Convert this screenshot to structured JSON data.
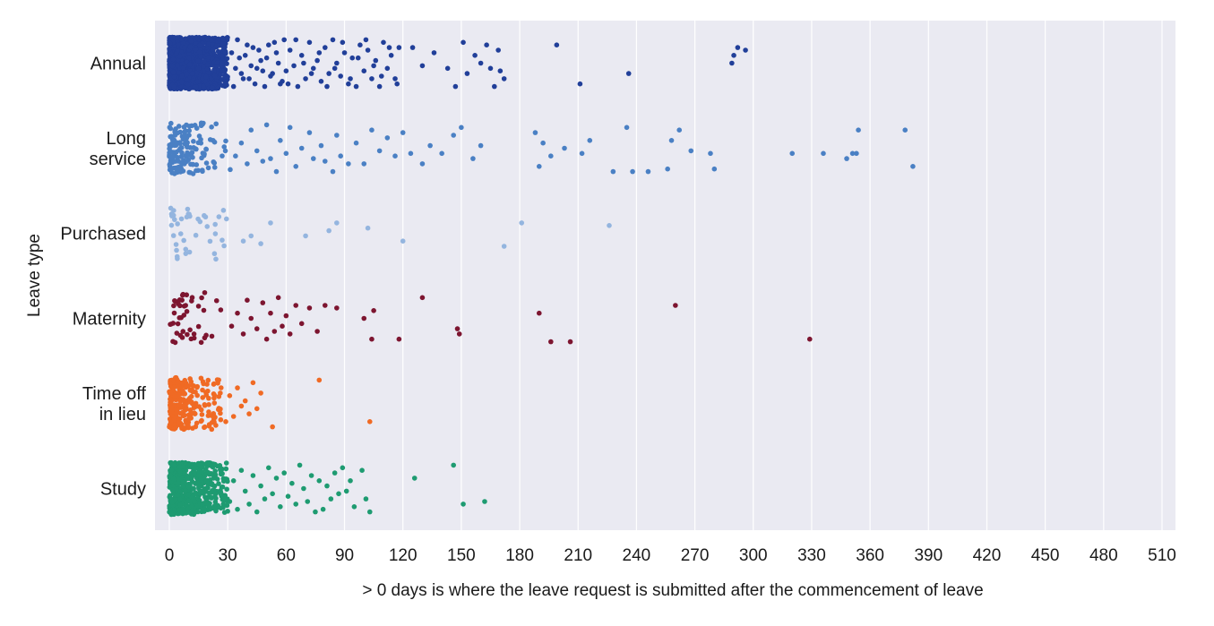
{
  "chart_data": {
    "type": "scatter",
    "subtype": "strip",
    "title": "",
    "xlabel": "> 0 days is where the leave request is submitted after the commencement of leave",
    "ylabel": "Leave type",
    "xlim": [
      -5,
      510
    ],
    "xticks": [
      0,
      30,
      60,
      90,
      120,
      150,
      180,
      210,
      240,
      270,
      300,
      330,
      360,
      390,
      420,
      450,
      480,
      510
    ],
    "grid": true,
    "background": "#eaeaf2",
    "categories": [
      {
        "label": [
          "Annual"
        ],
        "color": "#213f99"
      },
      {
        "label": [
          "Long",
          "service"
        ],
        "color": "#4a80c4"
      },
      {
        "label": [
          "Purchased"
        ],
        "color": "#94b5df"
      },
      {
        "label": [
          "Maternity"
        ],
        "color": "#7d1530"
      },
      {
        "label": [
          "Time off",
          "in lieu"
        ],
        "color": "#f06a24"
      },
      {
        "label": [
          "Study"
        ],
        "color": "#1e9b71"
      }
    ],
    "series": [
      {
        "name": "Annual",
        "dense": {
          "count": 1300,
          "max": 30,
          "decay": 14
        },
        "points": [
          [
            32,
            -0.4
          ],
          [
            34,
            0.2
          ],
          [
            36,
            -0.2
          ],
          [
            38,
            0.6
          ],
          [
            40,
            -0.7
          ],
          [
            42,
            0.1
          ],
          [
            44,
            0.8
          ],
          [
            46,
            -0.5
          ],
          [
            48,
            0.3
          ],
          [
            50,
            -0.2
          ],
          [
            52,
            0.5
          ],
          [
            54,
            -0.8
          ],
          [
            56,
            0.0
          ],
          [
            58,
            0.7
          ],
          [
            33,
            0.9
          ],
          [
            35,
            -0.9
          ],
          [
            37,
            0.4
          ],
          [
            39,
            -0.3
          ],
          [
            41,
            0.6
          ],
          [
            43,
            -0.6
          ],
          [
            45,
            0.2
          ],
          [
            47,
            -0.1
          ],
          [
            49,
            0.9
          ],
          [
            51,
            -0.7
          ],
          [
            53,
            0.4
          ],
          [
            55,
            -0.4
          ],
          [
            57,
            0.8
          ],
          [
            59,
            -0.9
          ],
          [
            60,
            0.3
          ],
          [
            62,
            -0.5
          ],
          [
            64,
            0.1
          ],
          [
            66,
            0.9
          ],
          [
            68,
            -0.3
          ],
          [
            70,
            0.6
          ],
          [
            72,
            -0.8
          ],
          [
            74,
            0.2
          ],
          [
            76,
            -0.1
          ],
          [
            78,
            0.7
          ],
          [
            80,
            -0.6
          ],
          [
            82,
            0.4
          ],
          [
            84,
            -0.9
          ],
          [
            86,
            0.0
          ],
          [
            88,
            0.5
          ],
          [
            90,
            -0.4
          ],
          [
            92,
            0.8
          ],
          [
            94,
            -0.2
          ],
          [
            96,
            0.9
          ],
          [
            98,
            -0.7
          ],
          [
            100,
            0.3
          ],
          [
            102,
            -0.5
          ],
          [
            104,
            0.6
          ],
          [
            106,
            -0.1
          ],
          [
            108,
            0.9
          ],
          [
            110,
            -0.8
          ],
          [
            112,
            0.2
          ],
          [
            114,
            -0.3
          ],
          [
            116,
            0.6
          ],
          [
            118,
            -0.6
          ],
          [
            61,
            0.8
          ],
          [
            65,
            -0.9
          ],
          [
            69,
            0.0
          ],
          [
            73,
            0.4
          ],
          [
            77,
            -0.4
          ],
          [
            81,
            0.9
          ],
          [
            85,
            0.2
          ],
          [
            89,
            -0.8
          ],
          [
            93,
            0.6
          ],
          [
            97,
            -0.2
          ],
          [
            101,
            -0.9
          ],
          [
            105,
            0.1
          ],
          [
            109,
            0.5
          ],
          [
            113,
            -0.6
          ],
          [
            117,
            0.8
          ],
          [
            125,
            -0.6
          ],
          [
            130,
            0.1
          ],
          [
            136,
            -0.4
          ],
          [
            143,
            0.2
          ],
          [
            147,
            0.9
          ],
          [
            151,
            -0.8
          ],
          [
            153,
            0.4
          ],
          [
            157,
            -0.3
          ],
          [
            160,
            0.0
          ],
          [
            163,
            -0.7
          ],
          [
            167,
            0.9
          ],
          [
            169,
            -0.5
          ],
          [
            172,
            0.6
          ],
          [
            170,
            0.3
          ],
          [
            165,
            0.2
          ],
          [
            199,
            -0.7
          ],
          [
            211,
            0.8
          ],
          [
            236,
            0.4
          ],
          [
            289,
            0.0
          ],
          [
            290,
            -0.3
          ],
          [
            292,
            -0.6
          ],
          [
            296,
            -0.5
          ]
        ]
      },
      {
        "name": "Long service",
        "dense": {
          "count": 150,
          "max": 32,
          "decay": 12
        },
        "points": [
          [
            34,
            0.3
          ],
          [
            37,
            -0.2
          ],
          [
            40,
            0.6
          ],
          [
            42,
            -0.7
          ],
          [
            45,
            0.1
          ],
          [
            48,
            0.5
          ],
          [
            50,
            -0.9
          ],
          [
            52,
            0.4
          ],
          [
            55,
            0.9
          ],
          [
            57,
            -0.3
          ],
          [
            60,
            0.2
          ],
          [
            62,
            -0.8
          ],
          [
            65,
            0.7
          ],
          [
            68,
            0.0
          ],
          [
            72,
            -0.6
          ],
          [
            74,
            0.4
          ],
          [
            78,
            -0.1
          ],
          [
            80,
            0.5
          ],
          [
            84,
            0.9
          ],
          [
            86,
            -0.5
          ],
          [
            88,
            0.3
          ],
          [
            92,
            0.6
          ],
          [
            96,
            -0.2
          ],
          [
            100,
            0.6
          ],
          [
            104,
            -0.7
          ],
          [
            108,
            0.1
          ],
          [
            112,
            -0.4
          ],
          [
            116,
            0.3
          ],
          [
            120,
            -0.6
          ],
          [
            124,
            0.2
          ],
          [
            130,
            0.6
          ],
          [
            134,
            -0.1
          ],
          [
            140,
            0.2
          ],
          [
            146,
            -0.5
          ],
          [
            150,
            -0.8
          ],
          [
            156,
            0.4
          ],
          [
            160,
            -0.1
          ],
          [
            188,
            -0.6
          ],
          [
            190,
            0.7
          ],
          [
            192,
            -0.2
          ],
          [
            196,
            0.3
          ],
          [
            203,
            0.0
          ],
          [
            212,
            0.2
          ],
          [
            216,
            -0.3
          ],
          [
            228,
            0.9
          ],
          [
            235,
            -0.8
          ],
          [
            238,
            0.9
          ],
          [
            246,
            0.9
          ],
          [
            256,
            0.8
          ],
          [
            258,
            -0.3
          ],
          [
            262,
            -0.7
          ],
          [
            268,
            0.1
          ],
          [
            278,
            0.2
          ],
          [
            280,
            0.8
          ],
          [
            320,
            0.2
          ],
          [
            336,
            0.2
          ],
          [
            348,
            0.4
          ],
          [
            351,
            0.2
          ],
          [
            353,
            0.2
          ],
          [
            354,
            -0.7
          ],
          [
            378,
            -0.7
          ],
          [
            382,
            0.7
          ]
        ]
      },
      {
        "name": "Purchased",
        "dense": {
          "count": 40,
          "max": 30,
          "decay": 12
        },
        "points": [
          [
            38,
            0.3
          ],
          [
            42,
            0.1
          ],
          [
            47,
            0.4
          ],
          [
            52,
            -0.4
          ],
          [
            70,
            0.1
          ],
          [
            82,
            -0.1
          ],
          [
            86,
            -0.4
          ],
          [
            102,
            -0.2
          ],
          [
            120,
            0.3
          ],
          [
            172,
            0.5
          ],
          [
            181,
            -0.4
          ],
          [
            226,
            -0.3
          ]
        ]
      },
      {
        "name": "Maternity",
        "dense": {
          "count": 45,
          "max": 30,
          "decay": 14
        },
        "points": [
          [
            32,
            0.3
          ],
          [
            35,
            -0.2
          ],
          [
            38,
            0.6
          ],
          [
            40,
            -0.7
          ],
          [
            42,
            0.0
          ],
          [
            45,
            0.4
          ],
          [
            48,
            -0.6
          ],
          [
            50,
            0.8
          ],
          [
            52,
            -0.2
          ],
          [
            54,
            0.5
          ],
          [
            56,
            -0.8
          ],
          [
            58,
            0.3
          ],
          [
            60,
            -0.1
          ],
          [
            62,
            0.6
          ],
          [
            65,
            -0.5
          ],
          [
            68,
            0.2
          ],
          [
            72,
            -0.4
          ],
          [
            76,
            0.5
          ],
          [
            80,
            -0.5
          ],
          [
            86,
            -0.4
          ],
          [
            100,
            0.0
          ],
          [
            104,
            0.8
          ],
          [
            105,
            -0.3
          ],
          [
            118,
            0.8
          ],
          [
            130,
            -0.8
          ],
          [
            148,
            0.4
          ],
          [
            149,
            0.6
          ],
          [
            190,
            -0.2
          ],
          [
            196,
            0.9
          ],
          [
            206,
            0.9
          ],
          [
            260,
            -0.5
          ],
          [
            329,
            0.8
          ]
        ]
      },
      {
        "name": "Time off in lieu",
        "dense": {
          "count": 260,
          "max": 28,
          "decay": 10
        },
        "points": [
          [
            29,
            0.7
          ],
          [
            31,
            -0.3
          ],
          [
            33,
            0.5
          ],
          [
            35,
            -0.6
          ],
          [
            37,
            0.1
          ],
          [
            39,
            -0.1
          ],
          [
            41,
            0.4
          ],
          [
            43,
            -0.8
          ],
          [
            45,
            0.2
          ],
          [
            47,
            -0.4
          ],
          [
            53,
            0.9
          ],
          [
            77,
            -0.9
          ],
          [
            103,
            0.7
          ]
        ]
      },
      {
        "name": "Study",
        "dense": {
          "count": 520,
          "max": 30,
          "decay": 16
        },
        "points": [
          [
            31,
            0.5
          ],
          [
            33,
            -0.3
          ],
          [
            35,
            0.8
          ],
          [
            37,
            -0.7
          ],
          [
            39,
            0.1
          ],
          [
            41,
            0.6
          ],
          [
            43,
            -0.5
          ],
          [
            45,
            0.9
          ],
          [
            47,
            -0.1
          ],
          [
            49,
            0.4
          ],
          [
            51,
            -0.8
          ],
          [
            53,
            0.2
          ],
          [
            55,
            -0.4
          ],
          [
            57,
            0.7
          ],
          [
            59,
            -0.6
          ],
          [
            61,
            0.3
          ],
          [
            63,
            -0.2
          ],
          [
            65,
            0.6
          ],
          [
            67,
            -0.9
          ],
          [
            69,
            0.0
          ],
          [
            71,
            0.5
          ],
          [
            73,
            -0.5
          ],
          [
            75,
            0.9
          ],
          [
            77,
            -0.3
          ],
          [
            79,
            0.8
          ],
          [
            81,
            -0.1
          ],
          [
            83,
            0.4
          ],
          [
            85,
            -0.6
          ],
          [
            87,
            0.2
          ],
          [
            89,
            -0.8
          ],
          [
            91,
            0.1
          ],
          [
            93,
            -0.3
          ],
          [
            95,
            0.7
          ],
          [
            99,
            -0.7
          ],
          [
            101,
            0.4
          ],
          [
            103,
            0.9
          ],
          [
            126,
            -0.4
          ],
          [
            146,
            -0.9
          ],
          [
            151,
            0.6
          ],
          [
            162,
            0.5
          ]
        ]
      }
    ]
  }
}
